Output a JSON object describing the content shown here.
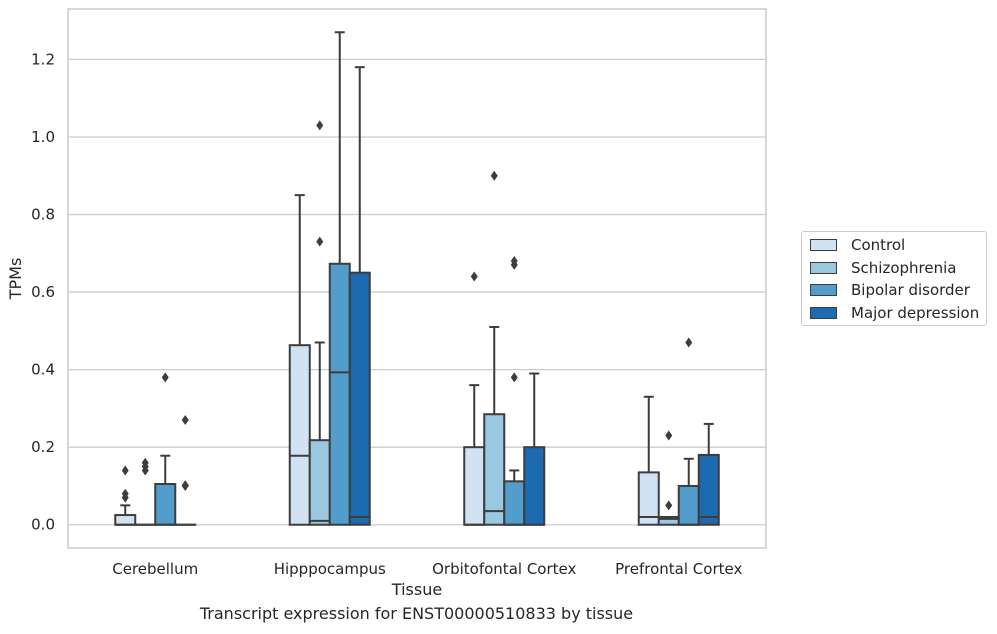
{
  "chart_data": {
    "type": "box",
    "title": "",
    "caption": "Transcript expression for ENST00000510833 by tissue",
    "xlabel": "Tissue",
    "ylabel": "TPMs",
    "ylim": [
      -0.06,
      1.33
    ],
    "yticks": [
      0.0,
      0.2,
      0.4,
      0.6,
      0.8,
      1.0,
      1.2
    ],
    "ytick_labels": [
      "0.0",
      "0.2",
      "0.4",
      "0.6",
      "0.8",
      "1.0",
      "1.2"
    ],
    "grid": "horizontal",
    "legend_position": "right",
    "categories": [
      "Cerebellum",
      "Hipppocampus",
      "Orbitofontal Cortex",
      "Prefrontal Cortex"
    ],
    "series": [
      {
        "name": "Control",
        "color": "#d1e2f2",
        "boxes": [
          {
            "q1": 0,
            "median": 0,
            "q3": 0.025,
            "whisker_low": 0,
            "whisker_high": 0.05,
            "outliers": [
              0.07,
              0.08,
              0.14
            ]
          },
          {
            "q1": 0,
            "median": 0.178,
            "q3": 0.463,
            "whisker_low": 0,
            "whisker_high": 0.85,
            "outliers": []
          },
          {
            "q1": 0,
            "median": 0,
            "q3": 0.2,
            "whisker_low": 0,
            "whisker_high": 0.36,
            "outliers": [
              0.64
            ]
          },
          {
            "q1": 0,
            "median": 0.02,
            "q3": 0.135,
            "whisker_low": 0,
            "whisker_high": 0.33,
            "outliers": []
          }
        ]
      },
      {
        "name": "Schizophrenia",
        "color": "#9ac8e0",
        "boxes": [
          {
            "q1": 0,
            "median": 0,
            "q3": 0,
            "whisker_low": 0,
            "whisker_high": 0,
            "outliers": [
              0.14,
              0.15,
              0.16
            ]
          },
          {
            "q1": 0,
            "median": 0.01,
            "q3": 0.218,
            "whisker_low": 0,
            "whisker_high": 0.47,
            "outliers": [
              0.73,
              1.03
            ]
          },
          {
            "q1": 0,
            "median": 0.035,
            "q3": 0.285,
            "whisker_low": 0,
            "whisker_high": 0.51,
            "outliers": [
              0.9
            ]
          },
          {
            "q1": 0,
            "median": 0.015,
            "q3": 0.02,
            "whisker_low": 0,
            "whisker_high": 0.02,
            "outliers": [
              0.05,
              0.23
            ]
          }
        ]
      },
      {
        "name": "Bipolar disorder",
        "color": "#529dcc",
        "boxes": [
          {
            "q1": 0,
            "median": 0,
            "q3": 0.105,
            "whisker_low": 0,
            "whisker_high": 0.178,
            "outliers": [
              0.38
            ]
          },
          {
            "q1": 0,
            "median": 0.393,
            "q3": 0.673,
            "whisker_low": 0,
            "whisker_high": 1.27,
            "outliers": []
          },
          {
            "q1": 0,
            "median": 0,
            "q3": 0.112,
            "whisker_low": 0,
            "whisker_high": 0.14,
            "outliers": [
              0.38,
              0.67,
              0.68
            ]
          },
          {
            "q1": 0,
            "median": 0,
            "q3": 0.1,
            "whisker_low": 0,
            "whisker_high": 0.17,
            "outliers": [
              0.47
            ]
          }
        ]
      },
      {
        "name": "Major depression",
        "color": "#1c6aaf",
        "boxes": [
          {
            "q1": 0,
            "median": 0,
            "q3": 0,
            "whisker_low": 0,
            "whisker_high": 0,
            "outliers": [
              0.1,
              0.102,
              0.27
            ]
          },
          {
            "q1": 0,
            "median": 0.02,
            "q3": 0.65,
            "whisker_low": 0,
            "whisker_high": 1.18,
            "outliers": []
          },
          {
            "q1": 0,
            "median": 0,
            "q3": 0.2,
            "whisker_low": 0,
            "whisker_high": 0.39,
            "outliers": []
          },
          {
            "q1": 0,
            "median": 0.02,
            "q3": 0.18,
            "whisker_low": 0,
            "whisker_high": 0.26,
            "outliers": []
          }
        ]
      }
    ]
  }
}
